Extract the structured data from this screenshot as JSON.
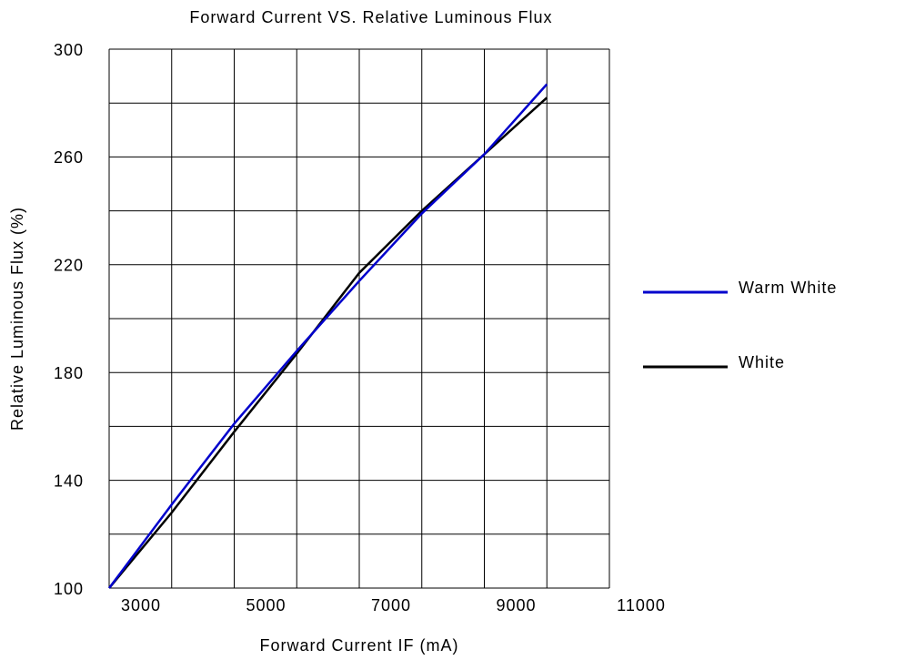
{
  "chart_data": {
    "type": "line",
    "title": "Forward Current VS. Relative Luminous Flux",
    "x_label": "Forward Current IF (mA)",
    "y_label": "Relative Luminous Flux  (%)",
    "x": [
      3000,
      4000,
      5000,
      6000,
      7000,
      8000,
      9000,
      10000
    ],
    "series": [
      {
        "name": "Warm White",
        "color": "#0000cc",
        "values": [
          100,
          131,
          161,
          188,
          214,
          239,
          261,
          287
        ]
      },
      {
        "name": "White",
        "color": "#000000",
        "values": [
          100,
          128,
          158,
          187,
          217,
          240,
          261,
          282
        ]
      }
    ],
    "xlim": [
      3000,
      11000
    ],
    "xticks": [
      3000,
      5000,
      7000,
      9000,
      11000
    ],
    "minor_xticks": [
      4000,
      6000,
      8000,
      10000
    ],
    "ylim": [
      100,
      300
    ],
    "yticks": [
      100,
      140,
      180,
      220,
      260,
      300
    ],
    "minor_yticks": [
      120,
      160,
      200,
      240,
      280
    ],
    "grid": true,
    "legend": "right"
  }
}
